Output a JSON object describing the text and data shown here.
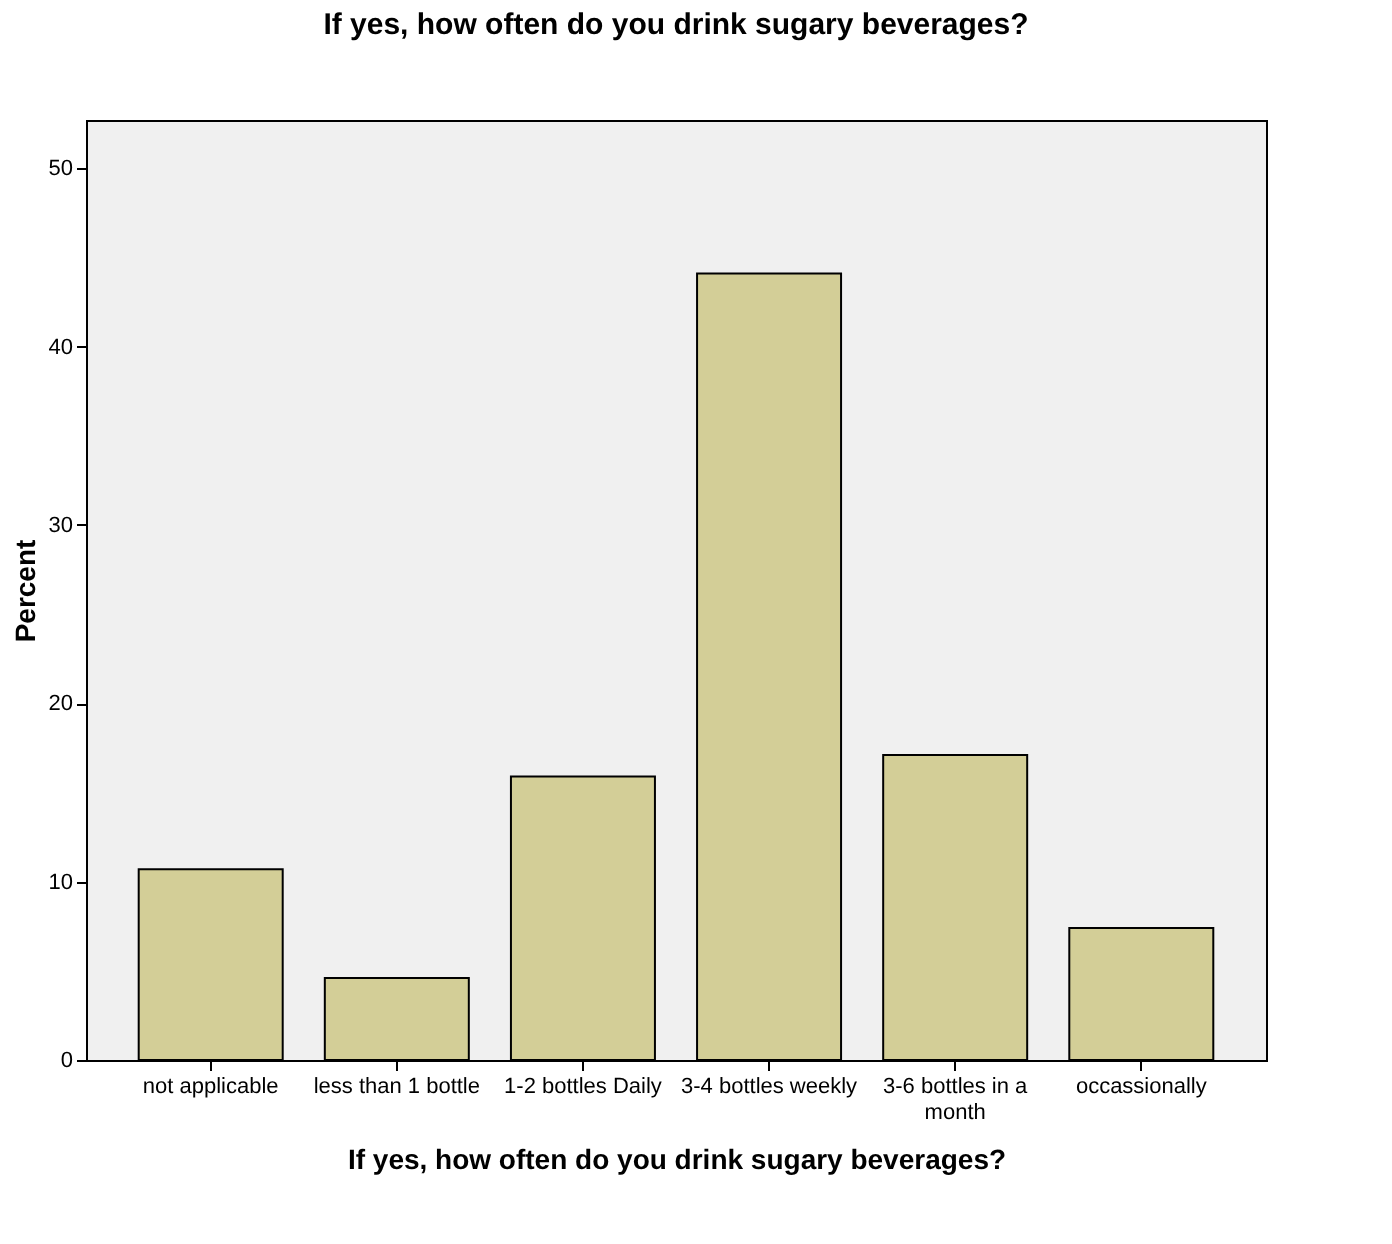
{
  "chart_data": {
    "type": "bar",
    "title": "If yes, how often do you drink sugary beverages?",
    "xlabel": "If yes, how often do you drink sugary beverages?",
    "ylabel": "Percent",
    "categories": [
      "not applicable",
      "less than 1 bottle",
      "1-2 bottles Daily",
      "3-4 bottles weekly",
      "3-6 bottles in a month",
      "occassionally"
    ],
    "values": [
      10.7,
      4.6,
      15.9,
      44.1,
      17.1,
      7.4
    ],
    "color": "#d3ce97",
    "ylim": [
      0,
      52.7
    ],
    "yticks": [
      0,
      10,
      20,
      30,
      40,
      50
    ],
    "grid": false
  }
}
